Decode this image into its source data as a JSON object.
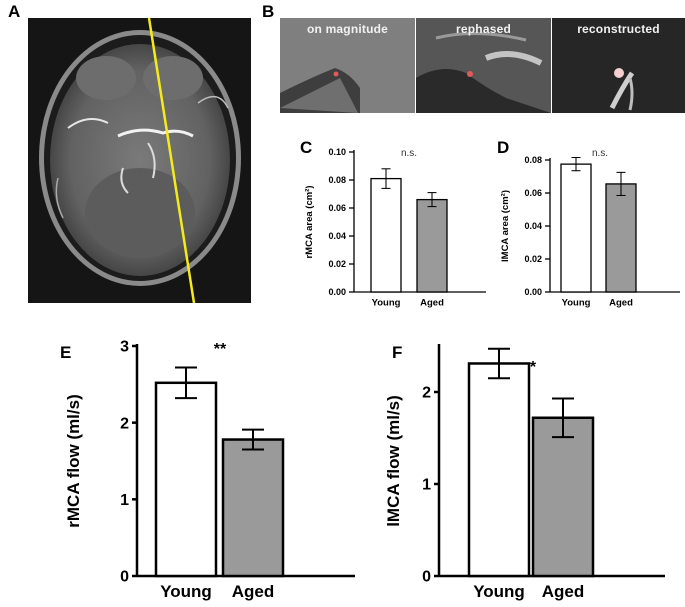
{
  "panels": {
    "A": {
      "letter": "A"
    },
    "B": {
      "letter": "B",
      "images": [
        {
          "label": "on magnitude"
        },
        {
          "label": "rephased"
        },
        {
          "label": "reconstructed"
        }
      ]
    },
    "C": {
      "letter": "C"
    },
    "D": {
      "letter": "D"
    },
    "E": {
      "letter": "E"
    },
    "F": {
      "letter": "F"
    }
  },
  "colors": {
    "young_fill": "#ffffff",
    "aged_fill": "#9a9a9a",
    "slice_line": "#f5ea1c",
    "vessel_marker": "#e05a5a"
  },
  "chart_data": [
    {
      "id": "C",
      "type": "bar",
      "categories": [
        "Young",
        "Aged"
      ],
      "values": [
        0.081,
        0.066
      ],
      "errors": [
        0.007,
        0.005
      ],
      "ylabel": "rMCA area (cm²)",
      "ylim": [
        0,
        0.1
      ],
      "yticks": [
        "0.00",
        "0.02",
        "0.04",
        "0.06",
        "0.08",
        "0.10"
      ],
      "annotation": "n.s."
    },
    {
      "id": "D",
      "type": "bar",
      "categories": [
        "Young",
        "Aged"
      ],
      "values": [
        0.0775,
        0.0655
      ],
      "errors": [
        0.004,
        0.007
      ],
      "ylabel": "lMCA area (cm²)",
      "ylim": [
        0,
        0.08
      ],
      "yticks": [
        "0.00",
        "0.02",
        "0.04",
        "0.06",
        "0.08"
      ],
      "annotation": "n.s."
    },
    {
      "id": "E",
      "type": "bar",
      "categories": [
        "Young",
        "Aged"
      ],
      "values": [
        2.52,
        1.78
      ],
      "errors": [
        0.2,
        0.13
      ],
      "ylabel": "rMCA flow (ml/s)",
      "ylim": [
        0,
        3
      ],
      "yticks": [
        "0",
        "1",
        "2",
        "3"
      ],
      "annotation": "**"
    },
    {
      "id": "F",
      "type": "bar",
      "categories": [
        "Young",
        "Aged"
      ],
      "values": [
        2.31,
        1.72
      ],
      "errors": [
        0.16,
        0.21
      ],
      "ylabel": "lMCA flow (ml/s)",
      "ylim": [
        0,
        2.5
      ],
      "yticks": [
        "0",
        "1",
        "2"
      ],
      "annotation": "*"
    }
  ]
}
